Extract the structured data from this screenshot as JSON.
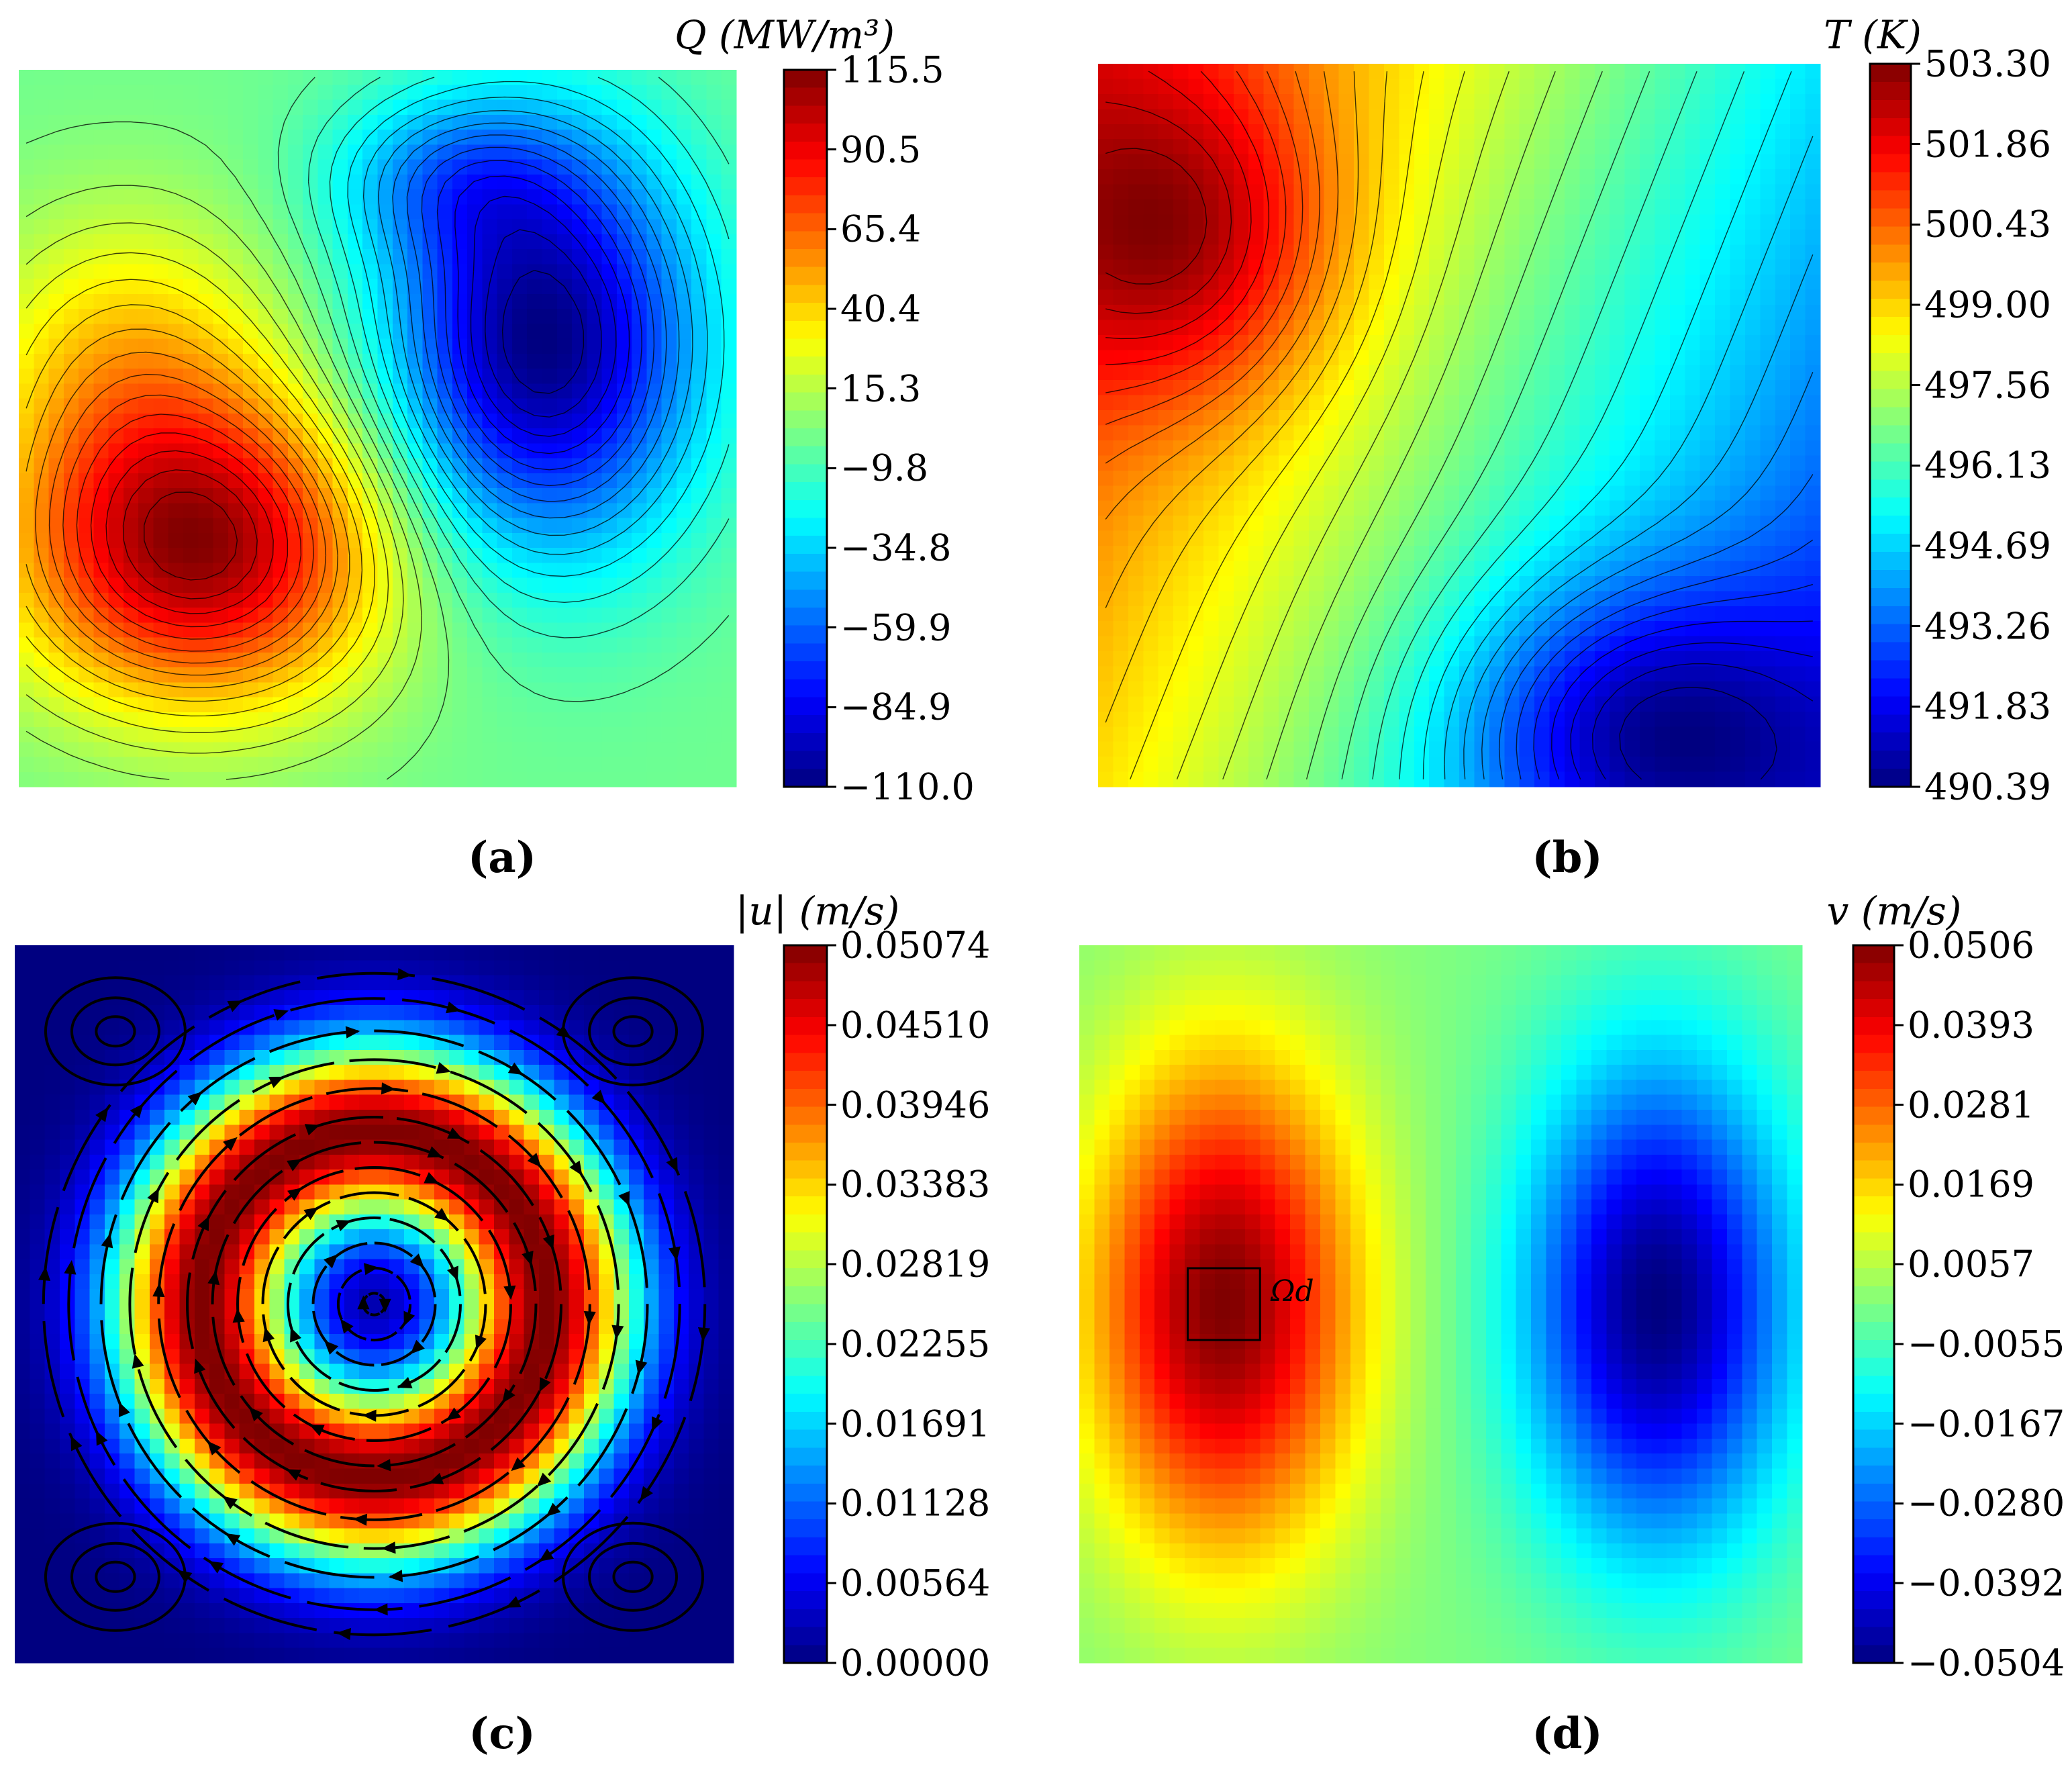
{
  "chart_data": [
    {
      "id": "a",
      "type": "heatmap",
      "caption": "(a)",
      "colorbar_label": "Q (MW/m³)",
      "colormap": "jet",
      "vmin": -110.0,
      "vmax": 115.5,
      "colorbar_ticks": [
        "115.5",
        "90.5",
        "65.4",
        "40.4",
        "15.3",
        "−9.8",
        "−34.8",
        "−59.9",
        "−84.9",
        "−110.0"
      ],
      "contour_lines": true,
      "field_features": [
        {
          "kind": "max",
          "x": 0.25,
          "y": 0.33,
          "value": 115.5
        },
        {
          "kind": "min",
          "x": 0.73,
          "y": 0.62,
          "value": -110.0
        }
      ]
    },
    {
      "id": "b",
      "type": "heatmap",
      "caption": "(b)",
      "colorbar_label": "T (K)",
      "colormap": "jet",
      "vmin": 490.39,
      "vmax": 503.3,
      "colorbar_ticks": [
        "503.30",
        "501.86",
        "500.43",
        "499.00",
        "497.56",
        "496.13",
        "494.69",
        "493.26",
        "491.83",
        "490.39"
      ],
      "contour_lines": true,
      "field_features": [
        {
          "kind": "max",
          "x": 0.12,
          "y": 0.76,
          "value": 503.3
        },
        {
          "kind": "min",
          "x": 0.75,
          "y": 0.08,
          "value": 490.39
        }
      ]
    },
    {
      "id": "c",
      "type": "heatmap",
      "caption": "(c)",
      "colorbar_label": "|u| (m/s)",
      "colormap": "jet",
      "vmin": 0.0,
      "vmax": 0.05074,
      "colorbar_ticks": [
        "0.05074",
        "0.04510",
        "0.03946",
        "0.03383",
        "0.02819",
        "0.02255",
        "0.01691",
        "0.01128",
        "0.00564",
        "0.00000"
      ],
      "streamlines": true,
      "flow_direction": "clockwise",
      "field_features": [
        {
          "kind": "vortex-centre",
          "x": 0.5,
          "y": 0.5,
          "value": 0.0
        }
      ]
    },
    {
      "id": "d",
      "type": "heatmap",
      "caption": "(d)",
      "colorbar_label": "v (m/s)",
      "colormap": "jet",
      "vmin": -0.0504,
      "vmax": 0.0506,
      "colorbar_ticks": [
        "0.0506",
        "0.0393",
        "0.0281",
        "0.0169",
        "0.0057",
        "−0.0055",
        "−0.0167",
        "−0.0280",
        "−0.0392",
        "−0.0504"
      ],
      "contour_lines": false,
      "field_features": [
        {
          "kind": "max",
          "x": 0.2,
          "y": 0.5,
          "value": 0.0506
        },
        {
          "kind": "min",
          "x": 0.8,
          "y": 0.5,
          "value": -0.0504
        }
      ],
      "subdomain": {
        "label": "Ωd",
        "x0": 0.15,
        "x1": 0.25,
        "y0": 0.45,
        "y1": 0.55
      }
    }
  ]
}
